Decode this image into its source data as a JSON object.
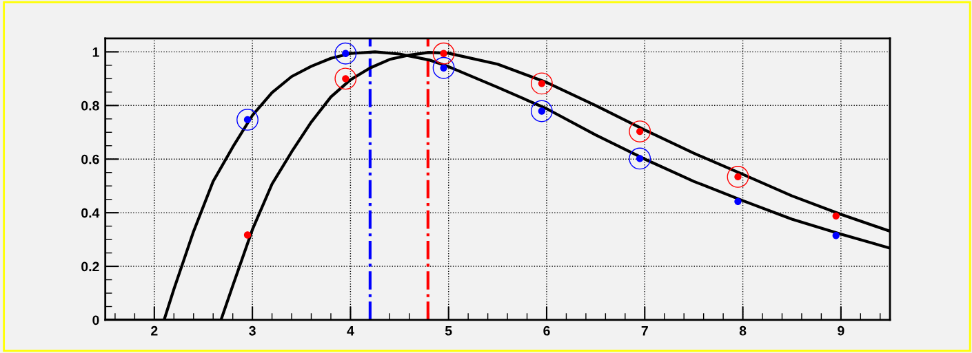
{
  "chart_data": {
    "type": "scatter",
    "xlim": [
      1.5,
      9.5
    ],
    "xticks": [
      2,
      3,
      4,
      5,
      6,
      7,
      8,
      9
    ],
    "ylim": [
      0,
      1.05
    ],
    "yticks": [
      0,
      0.2,
      0.4,
      0.6,
      0.8,
      1
    ],
    "grid": true,
    "series": [
      {
        "type": "line",
        "marker": "none",
        "color": "#000000",
        "x": [
          1.5,
          2.1,
          2.2,
          2.4,
          2.6,
          2.8,
          3.0,
          3.2,
          3.4,
          3.6,
          3.8,
          4.0,
          4.25,
          4.5,
          4.8,
          5.0,
          5.5,
          6.0,
          6.5,
          7.0,
          7.5,
          8.0,
          8.5,
          9.0,
          9.5
        ],
        "values": [
          0,
          0,
          0.115,
          0.33,
          0.517,
          0.645,
          0.763,
          0.848,
          0.908,
          0.946,
          0.976,
          0.994,
          1.0,
          0.992,
          0.97,
          0.945,
          0.868,
          0.788,
          0.69,
          0.6,
          0.517,
          0.445,
          0.376,
          0.32,
          0.268
        ]
      },
      {
        "type": "line",
        "marker": "none",
        "color": "#000000",
        "x": [
          1.5,
          2.68,
          2.8,
          3.0,
          3.2,
          3.4,
          3.6,
          3.8,
          4.0,
          4.2,
          4.4,
          4.6,
          4.8,
          5.0,
          5.5,
          6.0,
          6.5,
          7.0,
          7.5,
          8.0,
          8.5,
          9.0,
          9.5
        ],
        "values": [
          0,
          0,
          0.128,
          0.337,
          0.507,
          0.627,
          0.738,
          0.832,
          0.896,
          0.94,
          0.972,
          0.988,
          0.998,
          0.995,
          0.954,
          0.886,
          0.8,
          0.709,
          0.622,
          0.543,
          0.463,
          0.394,
          0.331
        ]
      },
      {
        "marker": "circle",
        "color": "#0000ff",
        "x": [
          2.95,
          3.95,
          4.95,
          5.95,
          6.95,
          7.95,
          8.95
        ],
        "values": [
          0.747,
          0.994,
          0.94,
          0.779,
          0.602,
          0.442,
          0.315
        ]
      },
      {
        "marker": "circle",
        "color": "#ff0000",
        "x": [
          2.95,
          3.95,
          4.95,
          5.95,
          6.95,
          7.95,
          8.95
        ],
        "values": [
          0.317,
          0.9,
          0.994,
          0.882,
          0.703,
          0.534,
          0.388
        ]
      },
      {
        "type": "bubble",
        "color": "#0000ff",
        "x": [
          2.95,
          3.95,
          4.95,
          5.95,
          6.95
        ],
        "values": [
          0.747,
          0.994,
          0.94,
          0.779,
          0.602
        ],
        "sizes": [
          1,
          1,
          1,
          1,
          1
        ]
      },
      {
        "type": "bubble",
        "color": "#ff0000",
        "x": [
          3.95,
          4.95,
          5.95,
          6.95,
          7.95
        ],
        "values": [
          0.9,
          0.994,
          0.882,
          0.703,
          0.534
        ],
        "sizes": [
          1,
          1,
          1,
          1,
          1
        ]
      }
    ],
    "ref_lines": [
      {
        "axis": "x",
        "value": 4.2,
        "color": "#0000ff",
        "line_style": "dashdot"
      },
      {
        "axis": "x",
        "value": 4.79,
        "color": "#ff0000",
        "line_style": "dashdot"
      }
    ]
  }
}
